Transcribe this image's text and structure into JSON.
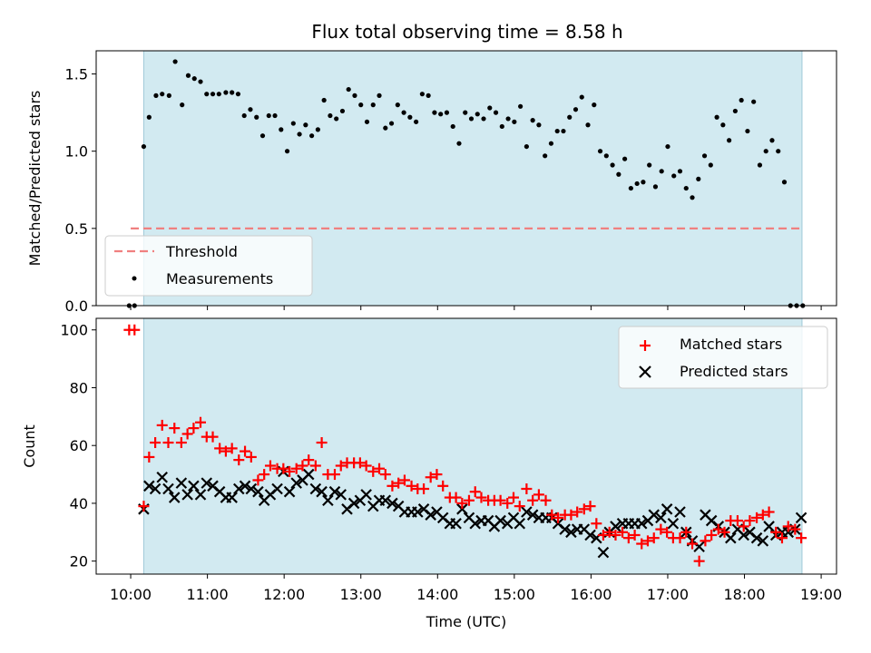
{
  "chart_data": {
    "title": "Flux total observing time = 8.58 h",
    "x_unit": "hours (UTC, decimal)",
    "xlabel": "Time (UTC)",
    "x_ticks": [
      10,
      11,
      12,
      13,
      14,
      15,
      16,
      17,
      18,
      19
    ],
    "x_tick_labels": [
      "10:00",
      "11:00",
      "12:00",
      "13:00",
      "14:00",
      "15:00",
      "16:00",
      "17:00",
      "18:00",
      "19:00"
    ],
    "xlim": [
      9.55,
      19.2
    ],
    "shaded_interval": [
      10.17,
      18.75
    ],
    "colors": {
      "shade": "#add8e6",
      "threshold": "#f08080",
      "matched": "#ff0000",
      "predicted": "#000000",
      "measurements": "#000000"
    },
    "panels": [
      {
        "type": "scatter",
        "ylabel": "Matched/Predicted stars",
        "ylim": [
          0,
          1.65
        ],
        "y_ticks": [
          0.0,
          0.5,
          1.0,
          1.5
        ],
        "y_tick_labels": [
          "0.0",
          "0.5",
          "1.0",
          "1.5"
        ],
        "legend_position": "lower-left",
        "threshold": {
          "name": "Threshold",
          "value": 0.5,
          "x_range": [
            10.0,
            18.75
          ]
        },
        "series": [
          {
            "name": "Measurements",
            "x": [
              9.98,
              10.05,
              10.17,
              10.24,
              10.33,
              10.41,
              10.5,
              10.58,
              10.67,
              10.75,
              10.83,
              10.91,
              10.99,
              11.07,
              11.15,
              11.24,
              11.32,
              11.4,
              11.48,
              11.56,
              11.64,
              11.72,
              11.8,
              11.88,
              11.96,
              12.04,
              12.12,
              12.2,
              12.28,
              12.36,
              12.44,
              12.52,
              12.6,
              12.68,
              12.76,
              12.84,
              12.92,
              13.0,
              13.08,
              13.16,
              13.24,
              13.32,
              13.4,
              13.48,
              13.56,
              13.64,
              13.72,
              13.8,
              13.88,
              13.96,
              14.04,
              14.12,
              14.2,
              14.28,
              14.36,
              14.44,
              14.52,
              14.6,
              14.68,
              14.76,
              14.84,
              14.92,
              15.0,
              15.08,
              15.16,
              15.24,
              15.32,
              15.4,
              15.48,
              15.56,
              15.64,
              15.72,
              15.8,
              15.88,
              15.96,
              16.04,
              16.12,
              16.2,
              16.28,
              16.36,
              16.44,
              16.52,
              16.6,
              16.68,
              16.76,
              16.84,
              16.92,
              17.0,
              17.08,
              17.16,
              17.24,
              17.32,
              17.4,
              17.48,
              17.56,
              17.64,
              17.72,
              17.8,
              17.88,
              17.96,
              18.04,
              18.12,
              18.2,
              18.28,
              18.36,
              18.44,
              18.52,
              18.6,
              18.68,
              18.76
            ],
            "y": [
              0.0,
              0.0,
              1.03,
              1.22,
              1.36,
              1.37,
              1.36,
              1.58,
              1.3,
              1.49,
              1.47,
              1.45,
              1.37,
              1.37,
              1.37,
              1.38,
              1.38,
              1.37,
              1.23,
              1.27,
              1.22,
              1.1,
              1.23,
              1.23,
              1.14,
              1.0,
              1.18,
              1.11,
              1.17,
              1.1,
              1.14,
              1.33,
              1.23,
              1.21,
              1.26,
              1.4,
              1.36,
              1.3,
              1.19,
              1.3,
              1.36,
              1.15,
              1.18,
              1.3,
              1.25,
              1.22,
              1.19,
              1.37,
              1.36,
              1.25,
              1.24,
              1.25,
              1.16,
              1.05,
              1.25,
              1.21,
              1.24,
              1.21,
              1.28,
              1.25,
              1.16,
              1.21,
              1.19,
              1.29,
              1.03,
              1.2,
              1.17,
              0.97,
              1.05,
              1.13,
              1.13,
              1.22,
              1.27,
              1.35,
              1.17,
              1.3,
              1.0,
              0.97,
              0.91,
              0.85,
              0.95,
              0.76,
              0.79,
              0.8,
              0.91,
              0.77,
              0.87,
              1.03,
              0.84,
              0.87,
              0.76,
              0.7,
              0.82,
              0.97,
              0.91,
              1.22,
              1.17,
              1.07,
              1.26,
              1.33,
              1.13,
              1.32,
              0.91,
              1.0,
              1.07,
              1.0,
              0.8,
              0.0,
              0.0,
              0.0
            ]
          }
        ]
      },
      {
        "type": "scatter",
        "ylabel": "Count",
        "ylim": [
          15.5,
          104
        ],
        "y_ticks": [
          20,
          40,
          60,
          80,
          100
        ],
        "y_tick_labels": [
          "20",
          "40",
          "60",
          "80",
          "100"
        ],
        "legend_position": "top-right",
        "series": [
          {
            "name": "Matched stars",
            "marker": "plus",
            "x": [
              9.98,
              10.05,
              10.17,
              10.24,
              10.32,
              10.41,
              10.49,
              10.57,
              10.66,
              10.74,
              10.82,
              10.91,
              10.99,
              11.07,
              11.16,
              11.24,
              11.32,
              11.41,
              11.49,
              11.57,
              11.66,
              11.74,
              11.82,
              11.91,
              11.99,
              12.07,
              12.16,
              12.24,
              12.32,
              12.41,
              12.49,
              12.57,
              12.66,
              12.74,
              12.82,
              12.91,
              12.99,
              13.07,
              13.16,
              13.24,
              13.32,
              13.41,
              13.49,
              13.57,
              13.66,
              13.74,
              13.82,
              13.91,
              13.99,
              14.07,
              14.16,
              14.24,
              14.32,
              14.41,
              14.49,
              14.57,
              14.66,
              14.74,
              14.82,
              14.91,
              14.99,
              15.07,
              15.16,
              15.24,
              15.32,
              15.41,
              15.49,
              15.57,
              15.66,
              15.74,
              15.82,
              15.91,
              15.99,
              16.07,
              16.16,
              16.24,
              16.32,
              16.41,
              16.49,
              16.57,
              16.66,
              16.74,
              16.82,
              16.91,
              16.99,
              17.07,
              17.16,
              17.24,
              17.32,
              17.41,
              17.49,
              17.57,
              17.66,
              17.74,
              17.82,
              17.91,
              17.99,
              18.07,
              18.16,
              18.24,
              18.32,
              18.41,
              18.49,
              18.57,
              18.66,
              18.74
            ],
            "y": [
              100,
              100,
              39,
              56,
              61,
              67,
              61,
              66,
              61,
              64,
              66,
              68,
              63,
              63,
              59,
              58,
              59,
              55,
              58,
              56,
              48,
              50,
              53,
              52,
              52,
              51,
              52,
              53,
              55,
              53,
              61,
              50,
              50,
              53,
              54,
              54,
              54,
              53,
              51,
              52,
              50,
              46,
              47,
              48,
              46,
              45,
              45,
              49,
              50,
              46,
              42,
              42,
              40,
              41,
              44,
              42,
              41,
              41,
              41,
              40,
              42,
              39,
              45,
              41,
              43,
              41,
              36,
              35,
              36,
              36,
              37,
              38,
              39,
              33,
              29,
              30,
              29,
              30,
              28,
              29,
              26,
              27,
              28,
              31,
              30,
              28,
              28,
              30,
              26,
              20,
              27,
              29,
              31,
              30,
              34,
              34,
              32,
              34,
              35,
              36,
              37,
              30,
              28,
              32,
              31,
              28
            ]
          },
          {
            "name": "Predicted stars",
            "marker": "x",
            "x": [
              10.17,
              10.24,
              10.32,
              10.41,
              10.49,
              10.57,
              10.66,
              10.74,
              10.82,
              10.91,
              10.99,
              11.07,
              11.16,
              11.24,
              11.32,
              11.41,
              11.49,
              11.57,
              11.66,
              11.74,
              11.82,
              11.91,
              11.99,
              12.07,
              12.16,
              12.24,
              12.32,
              12.41,
              12.49,
              12.57,
              12.66,
              12.74,
              12.82,
              12.91,
              12.99,
              13.07,
              13.16,
              13.24,
              13.32,
              13.41,
              13.49,
              13.57,
              13.66,
              13.74,
              13.82,
              13.91,
              13.99,
              14.07,
              14.16,
              14.24,
              14.32,
              14.41,
              14.49,
              14.57,
              14.66,
              14.74,
              14.82,
              14.91,
              14.99,
              15.07,
              15.16,
              15.24,
              15.32,
              15.41,
              15.49,
              15.57,
              15.66,
              15.74,
              15.82,
              15.91,
              15.99,
              16.07,
              16.16,
              16.24,
              16.32,
              16.41,
              16.49,
              16.57,
              16.66,
              16.74,
              16.82,
              16.91,
              16.99,
              17.07,
              17.16,
              17.24,
              17.32,
              17.41,
              17.49,
              17.57,
              17.66,
              17.74,
              17.82,
              17.91,
              17.99,
              18.07,
              18.16,
              18.24,
              18.32,
              18.41,
              18.49,
              18.57,
              18.66,
              18.74
            ],
            "y": [
              38,
              46,
              45,
              49,
              45,
              42,
              47,
              43,
              46,
              43,
              47,
              46,
              44,
              42,
              42,
              45,
              46,
              45,
              44,
              41,
              43,
              45,
              51,
              44,
              47,
              48,
              50,
              45,
              44,
              41,
              44,
              43,
              38,
              40,
              41,
              43,
              39,
              41,
              41,
              40,
              39,
              37,
              37,
              37,
              38,
              36,
              37,
              35,
              33,
              33,
              38,
              35,
              33,
              34,
              34,
              32,
              34,
              33,
              35,
              33,
              37,
              36,
              35,
              35,
              35,
              33,
              31,
              30,
              31,
              31,
              29,
              28,
              23,
              30,
              32,
              33,
              33,
              33,
              33,
              34,
              36,
              35,
              38,
              33,
              37,
              30,
              27,
              25,
              36,
              34,
              32,
              30,
              28,
              31,
              29,
              30,
              28,
              27,
              32,
              29,
              30,
              30,
              31,
              35
            ]
          }
        ]
      }
    ]
  }
}
